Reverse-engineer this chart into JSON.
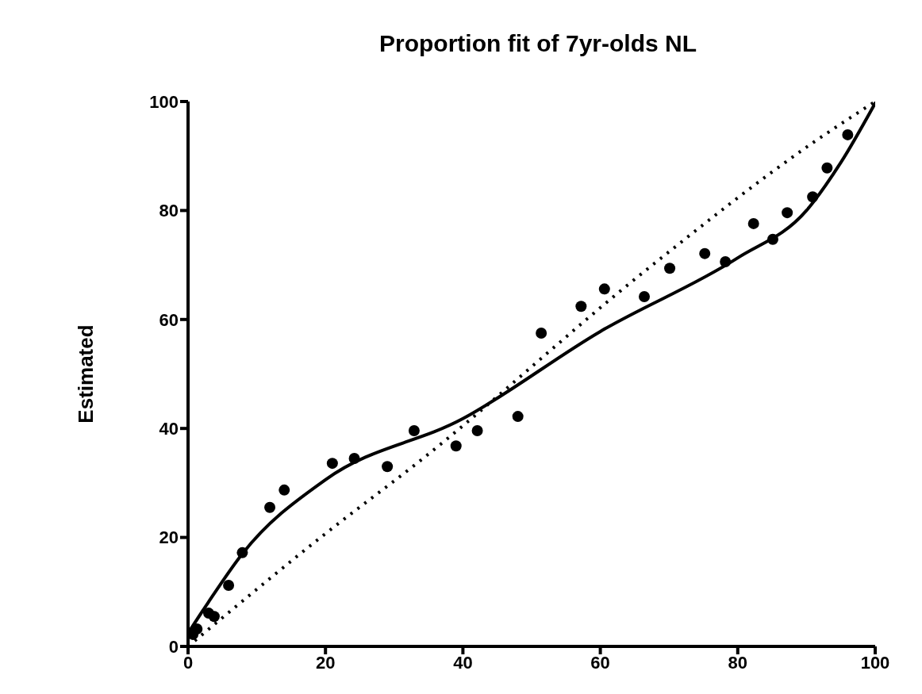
{
  "chart_data": {
    "type": "scatter",
    "title": "Proportion fit of 7yr-olds NL",
    "ylabel": "Estimated",
    "xlim": [
      0,
      100
    ],
    "ylim": [
      0,
      100
    ],
    "xticks": [
      0,
      20,
      40,
      60,
      80,
      100
    ],
    "yticks": [
      0,
      20,
      40,
      60,
      80,
      100
    ],
    "series": [
      {
        "color": "#000000",
        "marker": "circle",
        "x": [
          0.7,
          1.3,
          2.9,
          3,
          3.8,
          5.9,
          7.9,
          11.9,
          14,
          21,
          24.2,
          29,
          32.9,
          39,
          42.1,
          48,
          51.4,
          57.2,
          60.6,
          66.4,
          70.1,
          75.2,
          78.2,
          82.3,
          85.1,
          87.2,
          90.9,
          93,
          96
        ],
        "values": [
          2.2,
          3.2,
          null,
          6.1,
          5.5,
          11.2,
          17.2,
          25.5,
          28.7,
          33.6,
          34.5,
          33,
          39.6,
          36.8,
          39.6,
          42.2,
          57.5,
          62.4,
          65.6,
          64.2,
          69.4,
          72.1,
          70.6,
          77.6,
          74.7,
          79.6,
          82.5,
          87.8,
          93.9
        ]
      },
      {
        "type": "line",
        "color": "#000000",
        "line_style": "solid",
        "x": [
          0.3,
          2.9,
          7.9,
          20,
          40,
          60,
          80,
          90,
          95,
          100
        ],
        "values": [
          3,
          8,
          17,
          30.6,
          41.8,
          57.8,
          71.3,
          80,
          88.8,
          99.7
        ]
      },
      {
        "type": "line",
        "color": "#000000",
        "line_style": "dotted",
        "x": [
          0,
          20,
          33.5,
          66.4,
          90.9,
          100
        ],
        "values": [
          0,
          20.7,
          33.8,
          68.8,
          92.4,
          100
        ]
      }
    ]
  }
}
